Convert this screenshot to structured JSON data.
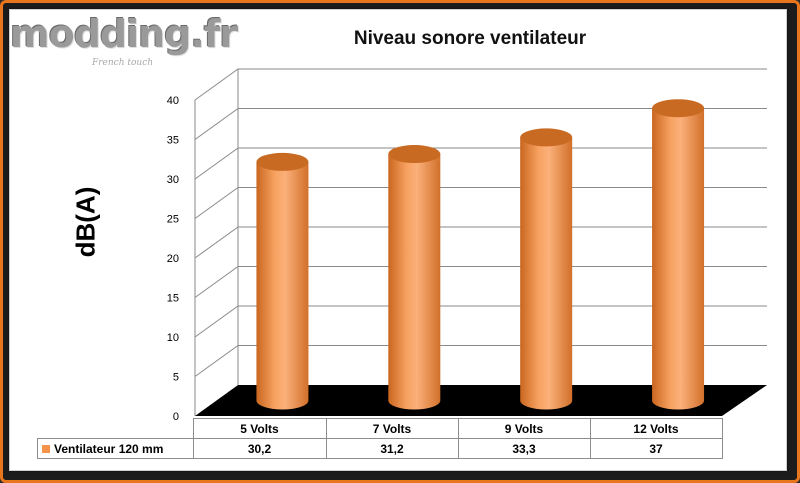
{
  "logo": {
    "brand": "modding.fr",
    "tagline": "French touch"
  },
  "colors": {
    "bar": "#f5934b",
    "bar_dark": "#c96a23",
    "floor": "#000000",
    "frame": "#e9761c"
  },
  "chart_data": {
    "type": "bar",
    "title": "Niveau sonore ventilateur",
    "ylabel": "dB(A)",
    "xlabel": "",
    "categories": [
      "5 Volts",
      "7 Volts",
      "9 Volts",
      "12 Volts"
    ],
    "series": [
      {
        "name": "Ventilateur 120 mm",
        "values": [
          "30,2",
          "31,2",
          "33,3",
          "37"
        ],
        "numeric": [
          30.2,
          31.2,
          33.3,
          37
        ]
      }
    ],
    "ylim": [
      0,
      40
    ],
    "yticks": [
      "0",
      "5",
      "10",
      "15",
      "20",
      "25",
      "30",
      "35",
      "40"
    ],
    "grid": true,
    "legend": "data table"
  }
}
